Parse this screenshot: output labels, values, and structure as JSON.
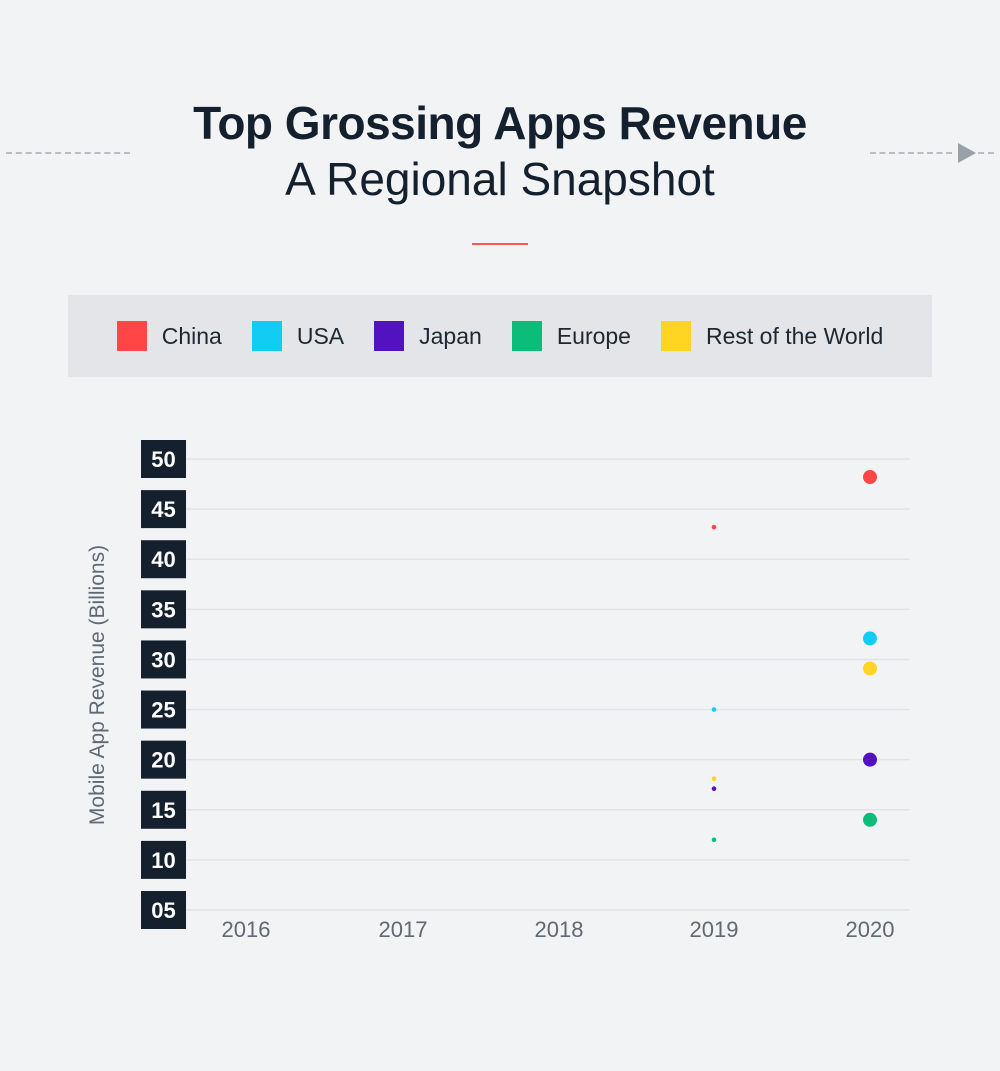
{
  "header": {
    "title": "Top Grossing Apps Revenue",
    "subtitle": "A Regional Snapshot"
  },
  "legend": [
    {
      "label": "China",
      "color": "#ff4545"
    },
    {
      "label": "USA",
      "color": "#12cdf3"
    },
    {
      "label": "Japan",
      "color": "#5212bf"
    },
    {
      "label": "Europe",
      "color": "#0cbd7a"
    },
    {
      "label": "Rest of the World",
      "color": "#ffd422"
    }
  ],
  "chart_data": {
    "type": "scatter",
    "title": "Top Grossing Apps Revenue",
    "subtitle": "A Regional Snapshot",
    "xlabel": "",
    "ylabel": "Mobile App Revenue (Billions)",
    "categories": [
      "2016",
      "2017",
      "2018",
      "2019",
      "2020"
    ],
    "y_ticks": [
      "05",
      "10",
      "15",
      "20",
      "25",
      "30",
      "35",
      "40",
      "45",
      "50"
    ],
    "ylim": [
      5,
      50
    ],
    "grid": true,
    "legend_position": "top",
    "series": [
      {
        "name": "China",
        "color": "#ff4545",
        "values": [
          null,
          null,
          null,
          43.2,
          48.2
        ]
      },
      {
        "name": "USA",
        "color": "#12cdf3",
        "values": [
          null,
          null,
          null,
          25.0,
          32.1
        ]
      },
      {
        "name": "Japan",
        "color": "#5212bf",
        "values": [
          null,
          null,
          null,
          17.1,
          20.0
        ]
      },
      {
        "name": "Europe",
        "color": "#0cbd7a",
        "values": [
          null,
          null,
          null,
          12.0,
          14.0
        ]
      },
      {
        "name": "Rest of the World",
        "color": "#ffd422",
        "values": [
          null,
          null,
          null,
          18.1,
          29.1
        ]
      }
    ]
  }
}
